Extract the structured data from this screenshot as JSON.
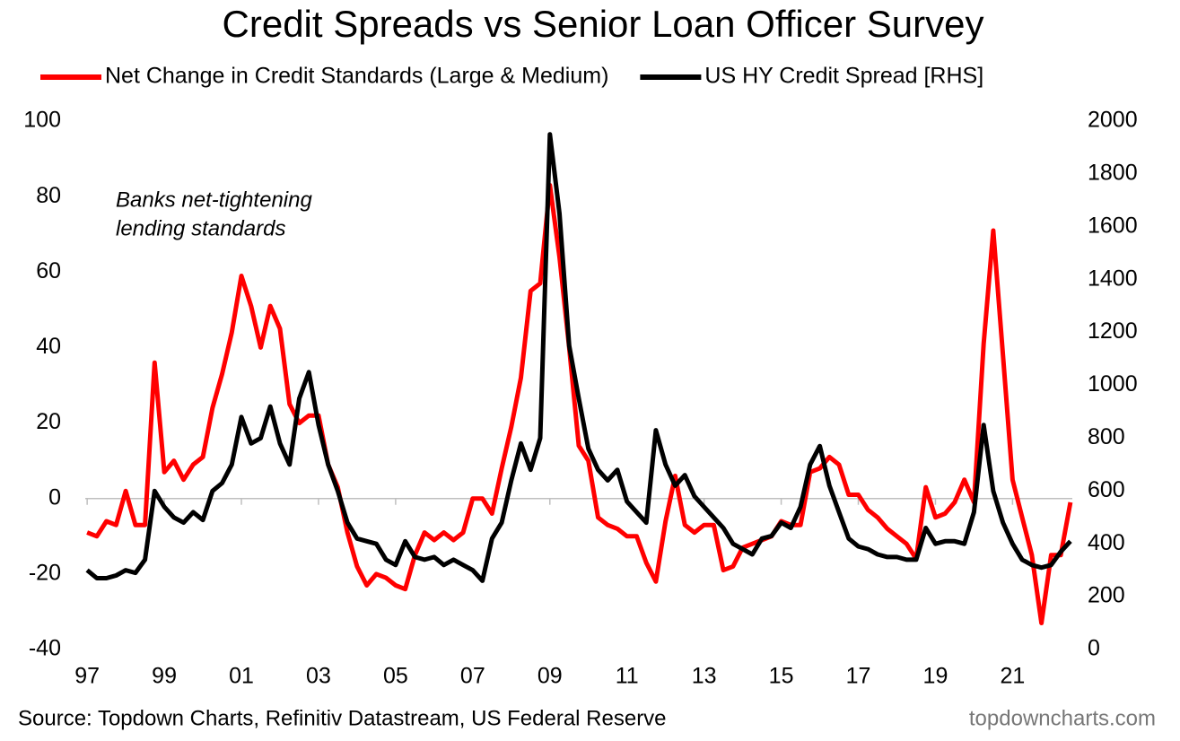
{
  "chart_data": {
    "type": "line",
    "title": "Credit Spreads vs Senior Loan Officer Survey",
    "annotation": [
      "Banks net-tightening",
      "lending standards"
    ],
    "source": "Source: Topdown Charts, Refinitiv Datastream, US Federal Reserve",
    "watermark": "topdowncharts.com",
    "x": [
      1997,
      1997.25,
      1997.5,
      1997.75,
      1998,
      1998.25,
      1998.5,
      1998.75,
      1999,
      1999.25,
      1999.5,
      1999.75,
      2000,
      2000.25,
      2000.5,
      2000.75,
      2001,
      2001.25,
      2001.5,
      2001.75,
      2002,
      2002.25,
      2002.5,
      2002.75,
      2003,
      2003.25,
      2003.5,
      2003.75,
      2004,
      2004.25,
      2004.5,
      2004.75,
      2005,
      2005.25,
      2005.5,
      2005.75,
      2006,
      2006.25,
      2006.5,
      2006.75,
      2007,
      2007.25,
      2007.5,
      2007.75,
      2008,
      2008.25,
      2008.5,
      2008.75,
      2009,
      2009.25,
      2009.5,
      2009.75,
      2010,
      2010.25,
      2010.5,
      2010.75,
      2011,
      2011.25,
      2011.5,
      2011.75,
      2012,
      2012.25,
      2012.5,
      2012.75,
      2013,
      2013.25,
      2013.5,
      2013.75,
      2014,
      2014.25,
      2014.5,
      2014.75,
      2015,
      2015.25,
      2015.5,
      2015.75,
      2016,
      2016.25,
      2016.5,
      2016.75,
      2017,
      2017.25,
      2017.5,
      2017.75,
      2018,
      2018.25,
      2018.5,
      2018.75,
      2019,
      2019.25,
      2019.5,
      2019.75,
      2020,
      2020.25,
      2020.5,
      2020.75,
      2021,
      2021.25,
      2021.5,
      2021.75,
      2022,
      2022.25,
      2022.5
    ],
    "series": [
      {
        "name": "Net Change in Credit Standards (Large & Medium)",
        "color": "#ff0000",
        "values": [
          -9,
          -10,
          -6,
          -7,
          2,
          -7,
          -7,
          36,
          7,
          10,
          5,
          9,
          11,
          24,
          33,
          44,
          59,
          51,
          40,
          51,
          45,
          25,
          20,
          22,
          22,
          9,
          3,
          -9,
          -18,
          -23,
          -20,
          -21,
          -23,
          -24,
          -15,
          -9,
          -11,
          -9,
          -11,
          -9,
          0,
          0,
          -4,
          8,
          19,
          32,
          55,
          57,
          83,
          64,
          40,
          14,
          10,
          -5,
          -7,
          -8,
          -10,
          -10,
          -17,
          -22,
          -6,
          6,
          -7,
          -9,
          -7,
          -7,
          -19,
          -18,
          -13,
          -12,
          -11,
          -10,
          -6,
          -7,
          -7,
          7,
          8,
          11,
          9,
          1,
          1,
          -3,
          -5,
          -8,
          -10,
          -12,
          -16,
          3,
          -5,
          -4,
          -1,
          5,
          -1,
          41,
          71,
          38,
          5,
          -5,
          -15,
          -33,
          -15,
          -15,
          -1
        ]
      },
      {
        "name": "US HY Credit Spread [RHS]",
        "color": "#000000",
        "axis": "y2",
        "values": [
          300,
          270,
          270,
          280,
          300,
          290,
          340,
          600,
          540,
          500,
          480,
          520,
          490,
          600,
          630,
          700,
          880,
          780,
          800,
          920,
          780,
          700,
          950,
          1050,
          850,
          700,
          600,
          480,
          420,
          410,
          400,
          340,
          320,
          410,
          350,
          340,
          350,
          320,
          340,
          320,
          300,
          260,
          420,
          480,
          640,
          780,
          680,
          800,
          1950,
          1650,
          1150,
          950,
          760,
          680,
          640,
          680,
          560,
          520,
          480,
          830,
          700,
          620,
          660,
          580,
          540,
          500,
          460,
          400,
          380,
          360,
          420,
          430,
          480,
          460,
          540,
          700,
          770,
          620,
          520,
          420,
          390,
          380,
          360,
          350,
          350,
          340,
          340,
          460,
          400,
          410,
          410,
          400,
          520,
          850,
          600,
          480,
          400,
          340,
          320,
          310,
          320,
          370,
          410
        ]
      }
    ],
    "xlim": [
      1996.95,
      2022.55
    ],
    "xticks": [
      {
        "value": 1997,
        "label": "97"
      },
      {
        "value": 1999,
        "label": "99"
      },
      {
        "value": 2001,
        "label": "01"
      },
      {
        "value": 2003,
        "label": "03"
      },
      {
        "value": 2005,
        "label": "05"
      },
      {
        "value": 2007,
        "label": "07"
      },
      {
        "value": 2009,
        "label": "09"
      },
      {
        "value": 2011,
        "label": "11"
      },
      {
        "value": 2013,
        "label": "13"
      },
      {
        "value": 2015,
        "label": "15"
      },
      {
        "value": 2017,
        "label": "17"
      },
      {
        "value": 2019,
        "label": "19"
      },
      {
        "value": 2021,
        "label": "21"
      }
    ],
    "ylim": [
      -40,
      100
    ],
    "yticks": [
      -40,
      -20,
      0,
      20,
      40,
      60,
      80,
      100
    ],
    "y2lim": [
      0,
      2000
    ],
    "y2ticks": [
      0,
      200,
      400,
      600,
      800,
      1000,
      1200,
      1400,
      1600,
      1800,
      2000
    ],
    "grid": false
  }
}
